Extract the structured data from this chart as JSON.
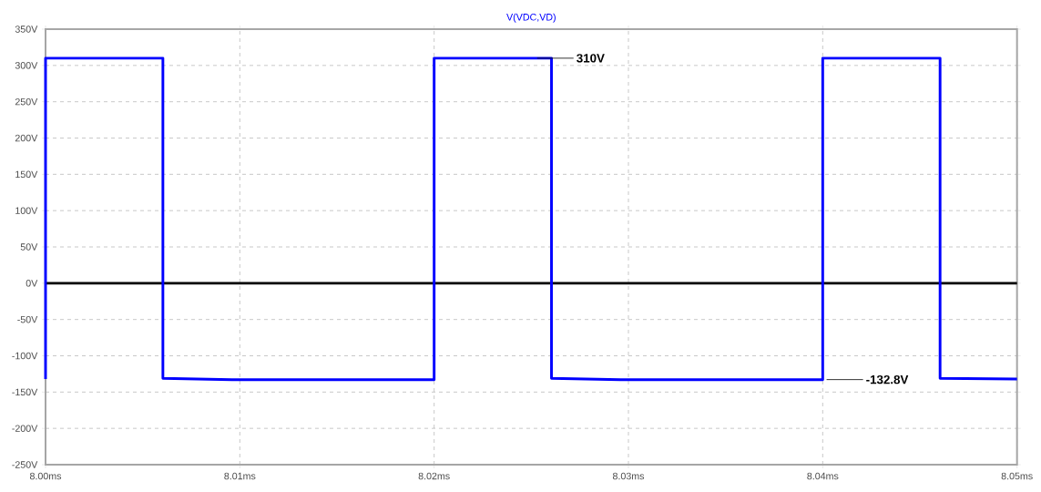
{
  "chart_data": {
    "type": "line",
    "title": "V(VDC,VD)",
    "x": [
      8.0,
      8.0,
      8.00604,
      8.00604,
      8.0096,
      8.02,
      8.02,
      8.02604,
      8.02604,
      8.0296,
      8.04,
      8.04,
      8.04604,
      8.04604,
      8.05
    ],
    "series": [
      {
        "color": "#0000ff",
        "values": [
          -132,
          310,
          310,
          -131,
          -133,
          -133,
          310,
          310,
          -131,
          -133,
          -133,
          310,
          310,
          -131,
          -132
        ]
      }
    ],
    "xlim": [
      8.0,
      8.05
    ],
    "xticks": [
      {
        "value": 8.0,
        "label": "8.00ms"
      },
      {
        "value": 8.01,
        "label": "8.01ms"
      },
      {
        "value": 8.02,
        "label": "8.02ms"
      },
      {
        "value": 8.03,
        "label": "8.03ms"
      },
      {
        "value": 8.04,
        "label": "8.04ms"
      },
      {
        "value": 8.05,
        "label": "8.05ms"
      }
    ],
    "ylim": [
      -250,
      350
    ],
    "yticks": [
      {
        "value": -250,
        "label": "-250V"
      },
      {
        "value": -200,
        "label": "-200V"
      },
      {
        "value": -150,
        "label": "-150V"
      },
      {
        "value": -100,
        "label": "-100V"
      },
      {
        "value": -50,
        "label": "-50V"
      },
      {
        "value": 0,
        "label": "0V"
      },
      {
        "value": 50,
        "label": "50V"
      },
      {
        "value": 100,
        "label": "100V"
      },
      {
        "value": 150,
        "label": "150V"
      },
      {
        "value": 200,
        "label": "200V"
      },
      {
        "value": 250,
        "label": "250V"
      },
      {
        "value": 300,
        "label": "300V"
      },
      {
        "value": 350,
        "label": "350V"
      }
    ],
    "grid": true,
    "line_style": "solid",
    "marker": "none",
    "ref_lines": [
      {
        "axis": "y",
        "value": 0,
        "color": "#000000"
      }
    ],
    "annotations": [
      {
        "text": "310V",
        "x": 8.0253,
        "y": 310
      },
      {
        "text": "-132.8V",
        "x": 8.0402,
        "y": -132.8
      }
    ]
  }
}
